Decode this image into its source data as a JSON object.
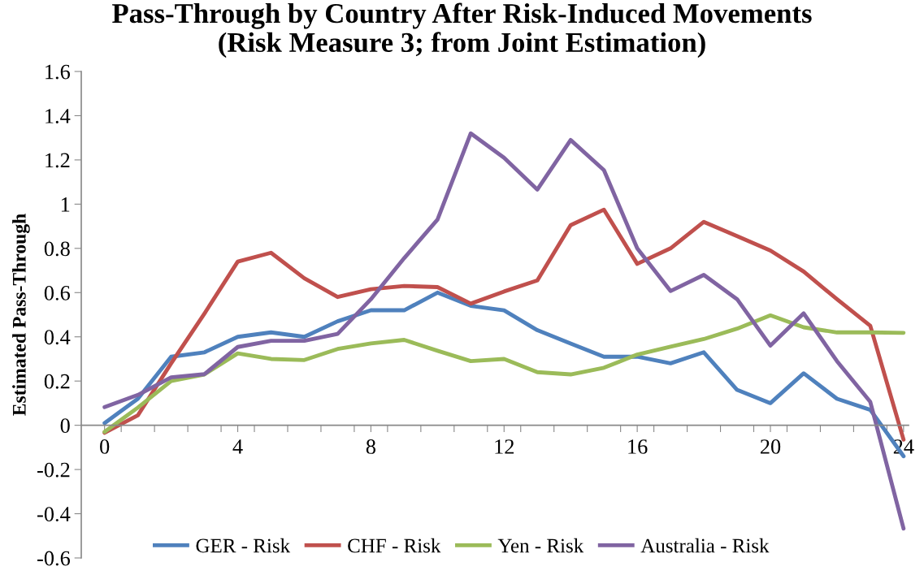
{
  "chart_data": {
    "type": "line",
    "title": "Pass-Through by Country After Risk-Induced Movements\n(Risk Measure 3; from Joint Estimation)",
    "ylabel": "Estimated Pass-Through",
    "x": [
      0,
      1,
      2,
      3,
      4,
      5,
      6,
      7,
      8,
      9,
      10,
      11,
      12,
      13,
      14,
      15,
      16,
      17,
      18,
      19,
      20,
      21,
      22,
      23,
      24
    ],
    "series": [
      {
        "name": "GER - Risk",
        "color": "#4f81bd",
        "values": [
          0.01,
          0.12,
          0.31,
          0.33,
          0.4,
          0.42,
          0.4,
          0.47,
          0.52,
          0.52,
          0.6,
          0.54,
          0.52,
          0.43,
          0.37,
          0.31,
          0.31,
          0.28,
          0.33,
          0.16,
          0.1,
          0.235,
          0.12,
          0.07,
          -0.14
        ]
      },
      {
        "name": "CHF - Risk",
        "color": "#c0504d",
        "values": [
          -0.034,
          0.045,
          0.28,
          0.505,
          0.74,
          0.78,
          0.665,
          0.58,
          0.615,
          0.63,
          0.625,
          0.55,
          0.605,
          0.655,
          0.905,
          0.975,
          0.73,
          0.8,
          0.92,
          0.855,
          0.79,
          0.695,
          0.57,
          0.45,
          -0.065
        ]
      },
      {
        "name": "Yen - Risk",
        "color": "#9bbb59",
        "values": [
          -0.03,
          0.08,
          0.2,
          0.23,
          0.325,
          0.3,
          0.295,
          0.345,
          0.37,
          0.386,
          0.337,
          0.29,
          0.3,
          0.24,
          0.23,
          0.26,
          0.32,
          0.355,
          0.39,
          0.437,
          0.497,
          0.443,
          0.42,
          0.42,
          0.418
        ]
      },
      {
        "name": "Australia - Risk",
        "color": "#8064a2",
        "values": [
          0.082,
          0.137,
          0.217,
          0.231,
          0.354,
          0.382,
          0.382,
          0.413,
          0.57,
          0.756,
          0.93,
          1.32,
          1.21,
          1.066,
          1.29,
          1.154,
          0.8,
          0.607,
          0.68,
          0.57,
          0.36,
          0.506,
          0.29,
          0.106,
          -0.467
        ]
      }
    ],
    "xlim": [
      -0.7,
      24.15
    ],
    "xticks": [
      0,
      {
        "value": 0.5,
        "label": null
      },
      {
        "value": 1.5,
        "label": null
      },
      {
        "value": 2.5,
        "label": null
      },
      {
        "value": 3.5,
        "label": null
      },
      4,
      {
        "value": 4.5,
        "label": null
      },
      {
        "value": 5.5,
        "label": null
      },
      {
        "value": 6.5,
        "label": null
      },
      {
        "value": 7.5,
        "label": null
      },
      8,
      {
        "value": 8.5,
        "label": null
      },
      {
        "value": 9.5,
        "label": null
      },
      {
        "value": 10.5,
        "label": null
      },
      {
        "value": 11.5,
        "label": null
      },
      12,
      {
        "value": 12.5,
        "label": null
      },
      {
        "value": 13.5,
        "label": null
      },
      {
        "value": 14.5,
        "label": null
      },
      {
        "value": 15.5,
        "label": null
      },
      16,
      {
        "value": 16.5,
        "label": null
      },
      {
        "value": 17.5,
        "label": null
      },
      {
        "value": 18.5,
        "label": null
      },
      {
        "value": 19.5,
        "label": null
      },
      20,
      {
        "value": 20.5,
        "label": null
      },
      {
        "value": 21.5,
        "label": null
      },
      {
        "value": 22.5,
        "label": null
      },
      {
        "value": 23.5,
        "label": null
      },
      24
    ],
    "ylim": [
      -0.6,
      1.6
    ],
    "yticks": [
      -0.6,
      -0.4,
      -0.2,
      0,
      0.2,
      0.4,
      0.6,
      0.8,
      1,
      1.2,
      1.4,
      1.6
    ],
    "grid": false,
    "legend": "bottom",
    "marker": "none",
    "line_style": "solid"
  }
}
